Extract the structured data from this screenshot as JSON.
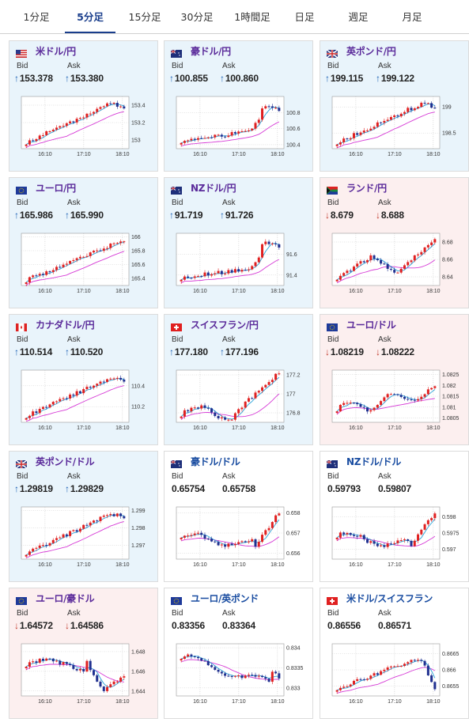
{
  "tabs": [
    {
      "label": "1分足",
      "active": false
    },
    {
      "label": "5分足",
      "active": true
    },
    {
      "label": "15分足",
      "active": false
    },
    {
      "label": "30分足",
      "active": false
    },
    {
      "label": "1時間足",
      "active": false
    },
    {
      "label": "日足",
      "active": false
    },
    {
      "label": "週足",
      "active": false
    },
    {
      "label": "月足",
      "active": false
    }
  ],
  "labels": {
    "bid": "Bid",
    "ask": "Ask"
  },
  "colors": {
    "title_up": "#5a2a9a",
    "title_flat": "#1a4da1",
    "up_bg": "#e9f4fb",
    "down_bg": "#fcefef",
    "candle_up": "#e02020",
    "candle_down": "#1f2f8f",
    "ma_short": "#2aa3d9",
    "ma_long": "#d63ad6"
  },
  "cards": [
    {
      "pair": "米ドル/円",
      "flag": "flag-us-icon",
      "trend": "up",
      "bid": "153.378",
      "ask": "153.380",
      "bid_dir": "up",
      "ask_dir": "up",
      "chart": {
        "type": "candlestick",
        "ylabels": [
          "153.4",
          "153.2",
          "153"
        ],
        "ylim": [
          152.9,
          153.5
        ],
        "xlabels": [
          "16:10",
          "17:10",
          "18:10"
        ],
        "shape": "rise_top"
      }
    },
    {
      "pair": "豪ドル/円",
      "flag": "flag-au-icon",
      "trend": "up",
      "bid": "100.855",
      "ask": "100.860",
      "bid_dir": "up",
      "ask_dir": "up",
      "chart": {
        "type": "candlestick",
        "ylabels": [
          "100.8",
          "100.6",
          "100.4"
        ],
        "ylim": [
          100.35,
          101.0
        ],
        "xlabels": [
          "16:10",
          "17:10",
          "18:10"
        ],
        "shape": "late_jump"
      }
    },
    {
      "pair": "英ポンド/円",
      "flag": "flag-gb-icon",
      "trend": "up",
      "bid": "199.115",
      "ask": "199.122",
      "bid_dir": "up",
      "ask_dir": "up",
      "chart": {
        "type": "candlestick",
        "ylabels": [
          "199",
          "198.5"
        ],
        "ylim": [
          198.2,
          199.2
        ],
        "xlabels": [
          "16:10",
          "17:10",
          "18:10"
        ],
        "shape": "rise_top"
      }
    },
    {
      "pair": "ユーロ/円",
      "flag": "flag-eu-icon",
      "trend": "up",
      "bid": "165.986",
      "ask": "165.990",
      "bid_dir": "up",
      "ask_dir": "up",
      "chart": {
        "type": "candlestick",
        "ylabels": [
          "166",
          "165.8",
          "165.6",
          "165.4"
        ],
        "ylim": [
          165.3,
          166.05
        ],
        "xlabels": [
          "16:10",
          "17:10",
          "18:10"
        ],
        "shape": "steady_rise"
      }
    },
    {
      "pair": "NZドル/円",
      "flag": "flag-nz-icon",
      "trend": "up",
      "bid": "91.719",
      "ask": "91.726",
      "bid_dir": "up",
      "ask_dir": "up",
      "chart": {
        "type": "candlestick",
        "ylabels": [
          "91.6",
          "91.4"
        ],
        "ylim": [
          91.3,
          91.8
        ],
        "xlabels": [
          "16:10",
          "17:10",
          "18:10"
        ],
        "shape": "late_jump"
      }
    },
    {
      "pair": "ランド/円",
      "flag": "flag-za-icon",
      "trend": "down",
      "bid": "8.679",
      "ask": "8.688",
      "bid_dir": "down",
      "ask_dir": "down",
      "chart": {
        "type": "candlestick",
        "ylabels": [
          "8.68",
          "8.66",
          "8.64"
        ],
        "ylim": [
          8.63,
          8.69
        ],
        "xlabels": [
          "16:10",
          "17:10",
          "18:10"
        ],
        "shape": "hump_rise"
      }
    },
    {
      "pair": "カナダドル/円",
      "flag": "flag-ca-icon",
      "trend": "up",
      "bid": "110.514",
      "ask": "110.520",
      "bid_dir": "up",
      "ask_dir": "up",
      "chart": {
        "type": "candlestick",
        "ylabels": [
          "110.4",
          "110.2"
        ],
        "ylim": [
          110.05,
          110.55
        ],
        "xlabels": [
          "16:10",
          "17:10",
          "18:10"
        ],
        "shape": "rise_top"
      }
    },
    {
      "pair": "スイスフラン/円",
      "flag": "flag-ch-icon",
      "trend": "up",
      "bid": "177.180",
      "ask": "177.196",
      "bid_dir": "up",
      "ask_dir": "up",
      "chart": {
        "type": "candlestick",
        "ylabels": [
          "177.2",
          "177",
          "176.8"
        ],
        "ylim": [
          176.7,
          177.25
        ],
        "xlabels": [
          "16:10",
          "17:10",
          "18:10"
        ],
        "shape": "late_rise"
      }
    },
    {
      "pair": "ユーロ/ドル",
      "flag": "flag-euus-icon",
      "trend": "down",
      "bid": "1.08219",
      "ask": "1.08222",
      "bid_dir": "down",
      "ask_dir": "down",
      "chart": {
        "type": "candlestick",
        "ylabels": [
          "1.0825",
          "1.082",
          "1.0815",
          "1.081",
          "1.0805"
        ],
        "ylim": [
          1.0803,
          1.0827
        ],
        "xlabels": [
          "16:10",
          "17:10",
          "18:10"
        ],
        "shape": "noisy_rise"
      }
    },
    {
      "pair": "英ポンド/ドル",
      "flag": "flag-gbus-icon",
      "trend": "up",
      "bid": "1.29819",
      "ask": "1.29829",
      "bid_dir": "up",
      "ask_dir": "up",
      "chart": {
        "type": "candlestick",
        "ylabels": [
          "1.299",
          "1.298",
          "1.297"
        ],
        "ylim": [
          1.2962,
          1.2992
        ],
        "xlabels": [
          "16:10",
          "17:10",
          "18:10"
        ],
        "shape": "rise_top"
      }
    },
    {
      "pair": "豪ドル/ドル",
      "flag": "flag-auus-icon",
      "trend": "flat",
      "bid": "0.65754",
      "ask": "0.65758",
      "bid_dir": "",
      "ask_dir": "",
      "chart": {
        "type": "candlestick",
        "ylabels": [
          "0.658",
          "0.657",
          "0.656"
        ],
        "ylim": [
          0.6557,
          0.6583
        ],
        "xlabels": [
          "16:10",
          "17:10",
          "18:10"
        ],
        "shape": "dip_jump"
      }
    },
    {
      "pair": "NZドル/ドル",
      "flag": "flag-nzus-icon",
      "trend": "flat",
      "bid": "0.59793",
      "ask": "0.59807",
      "bid_dir": "",
      "ask_dir": "",
      "chart": {
        "type": "candlestick",
        "ylabels": [
          "0.598",
          "0.5975",
          "0.597"
        ],
        "ylim": [
          0.5967,
          0.5983
        ],
        "xlabels": [
          "16:10",
          "17:10",
          "18:10"
        ],
        "shape": "dip_jump"
      }
    },
    {
      "pair": "ユーロ/豪ドル",
      "flag": "flag-euau-icon",
      "trend": "down",
      "bid": "1.64572",
      "ask": "1.64586",
      "bid_dir": "down",
      "ask_dir": "down",
      "chart": {
        "type": "candlestick",
        "ylabels": [
          "1.648",
          "1.646",
          "1.644"
        ],
        "ylim": [
          1.6435,
          1.6488
        ],
        "xlabels": [
          "16:10",
          "17:10",
          "18:10"
        ],
        "shape": "drop"
      }
    },
    {
      "pair": "ユーロ/英ポンド",
      "flag": "flag-eugb-icon",
      "trend": "flat",
      "bid": "0.83356",
      "ask": "0.83364",
      "bid_dir": "",
      "ask_dir": "",
      "chart": {
        "type": "candlestick",
        "ylabels": [
          "0.834",
          "0.8335",
          "0.833"
        ],
        "ylim": [
          0.8328,
          0.8341
        ],
        "xlabels": [
          "16:10",
          "17:10",
          "18:10"
        ],
        "shape": "fall"
      }
    },
    {
      "pair": "米ドル/スイスフラン",
      "flag": "flag-usch-icon",
      "trend": "flat",
      "bid": "0.86556",
      "ask": "0.86571",
      "bid_dir": "",
      "ask_dir": "",
      "chart": {
        "type": "candlestick",
        "ylabels": [
          "0.8665",
          "0.866",
          "0.8655"
        ],
        "ylim": [
          0.8652,
          0.8668
        ],
        "xlabels": [
          "16:10",
          "17:10",
          "18:10"
        ],
        "shape": "rise_drop"
      }
    }
  ]
}
